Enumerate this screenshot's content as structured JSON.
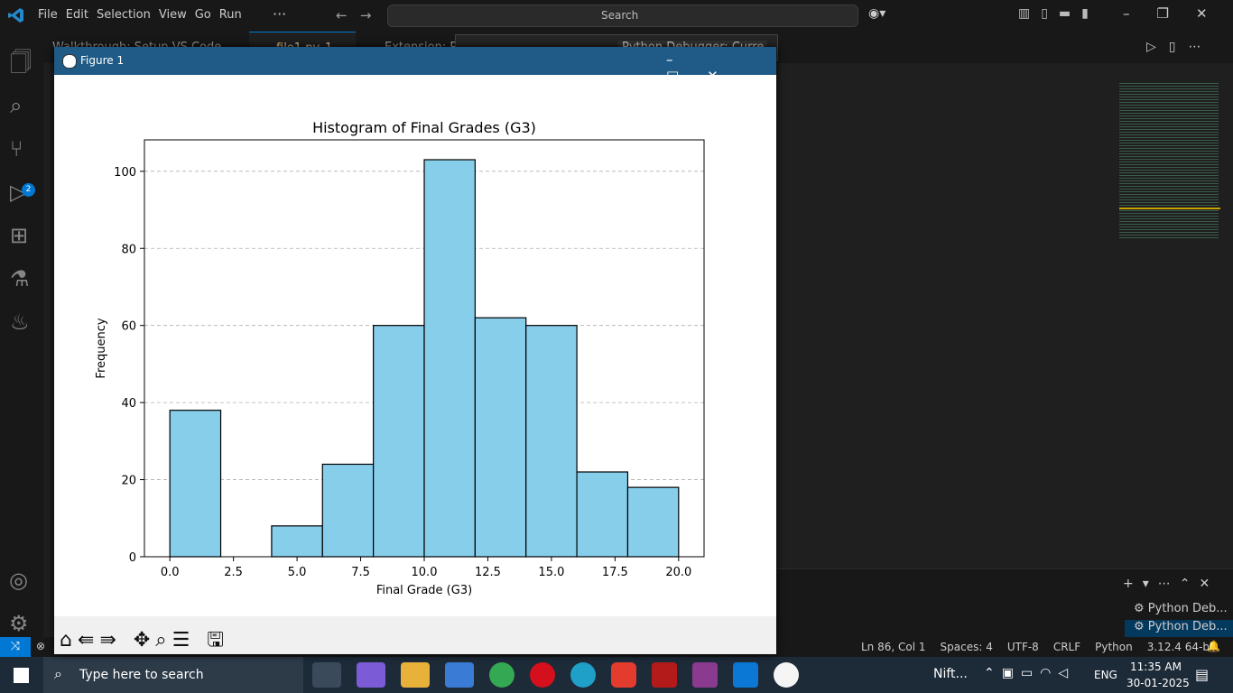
{
  "menu": [
    "File",
    "Edit",
    "Selection",
    "View",
    "Go",
    "Run"
  ],
  "search": "Search",
  "tabs": [
    "Walkthrough: Setup VS Code",
    "file1.py",
    "Extension: Py"
  ],
  "tab_badge": "1",
  "debug_config": "Python Debugger: Curre",
  "activity_badge": "2",
  "figure": {
    "window_title": "Figure 1"
  },
  "chart_data": {
    "type": "histogram",
    "title": "Histogram of Final Grades (G3)",
    "x_label": "Final Grade (G3)",
    "y_label": "Frequency",
    "bins": [
      0,
      2,
      4,
      6,
      8,
      10,
      12,
      14,
      16,
      18,
      20
    ],
    "values": [
      38,
      0,
      8,
      24,
      60,
      103,
      62,
      60,
      22,
      18
    ],
    "color": "#87ceeb",
    "edge_color": "#000000",
    "xlim": [
      -1,
      21
    ],
    "ylim": [
      0,
      108.15
    ],
    "xticks": [
      {
        "value": 0,
        "label": "0.0"
      },
      2.5,
      {
        "value": 5,
        "label": "5.0"
      },
      7.5,
      {
        "value": 10,
        "label": "10.0"
      },
      12.5,
      {
        "value": 15,
        "label": "15.0"
      },
      17.5,
      {
        "value": 20,
        "label": "20.0"
      }
    ],
    "yticks": [
      0,
      20,
      40,
      60,
      80,
      100
    ],
    "grid": "y"
  },
  "panel_items": [
    "Python Deb...",
    "Python Deb..."
  ],
  "status_bar": [
    "Ln 86, Col 1",
    "Spaces: 4",
    "UTF-8",
    "CRLF",
    "Python",
    "3.12.4 64-bit"
  ],
  "taskbar": {
    "search": "Type here to search",
    "stock": "Nift...",
    "language": "ENG",
    "time": "11:35 AM",
    "date": "30-01-2025"
  }
}
